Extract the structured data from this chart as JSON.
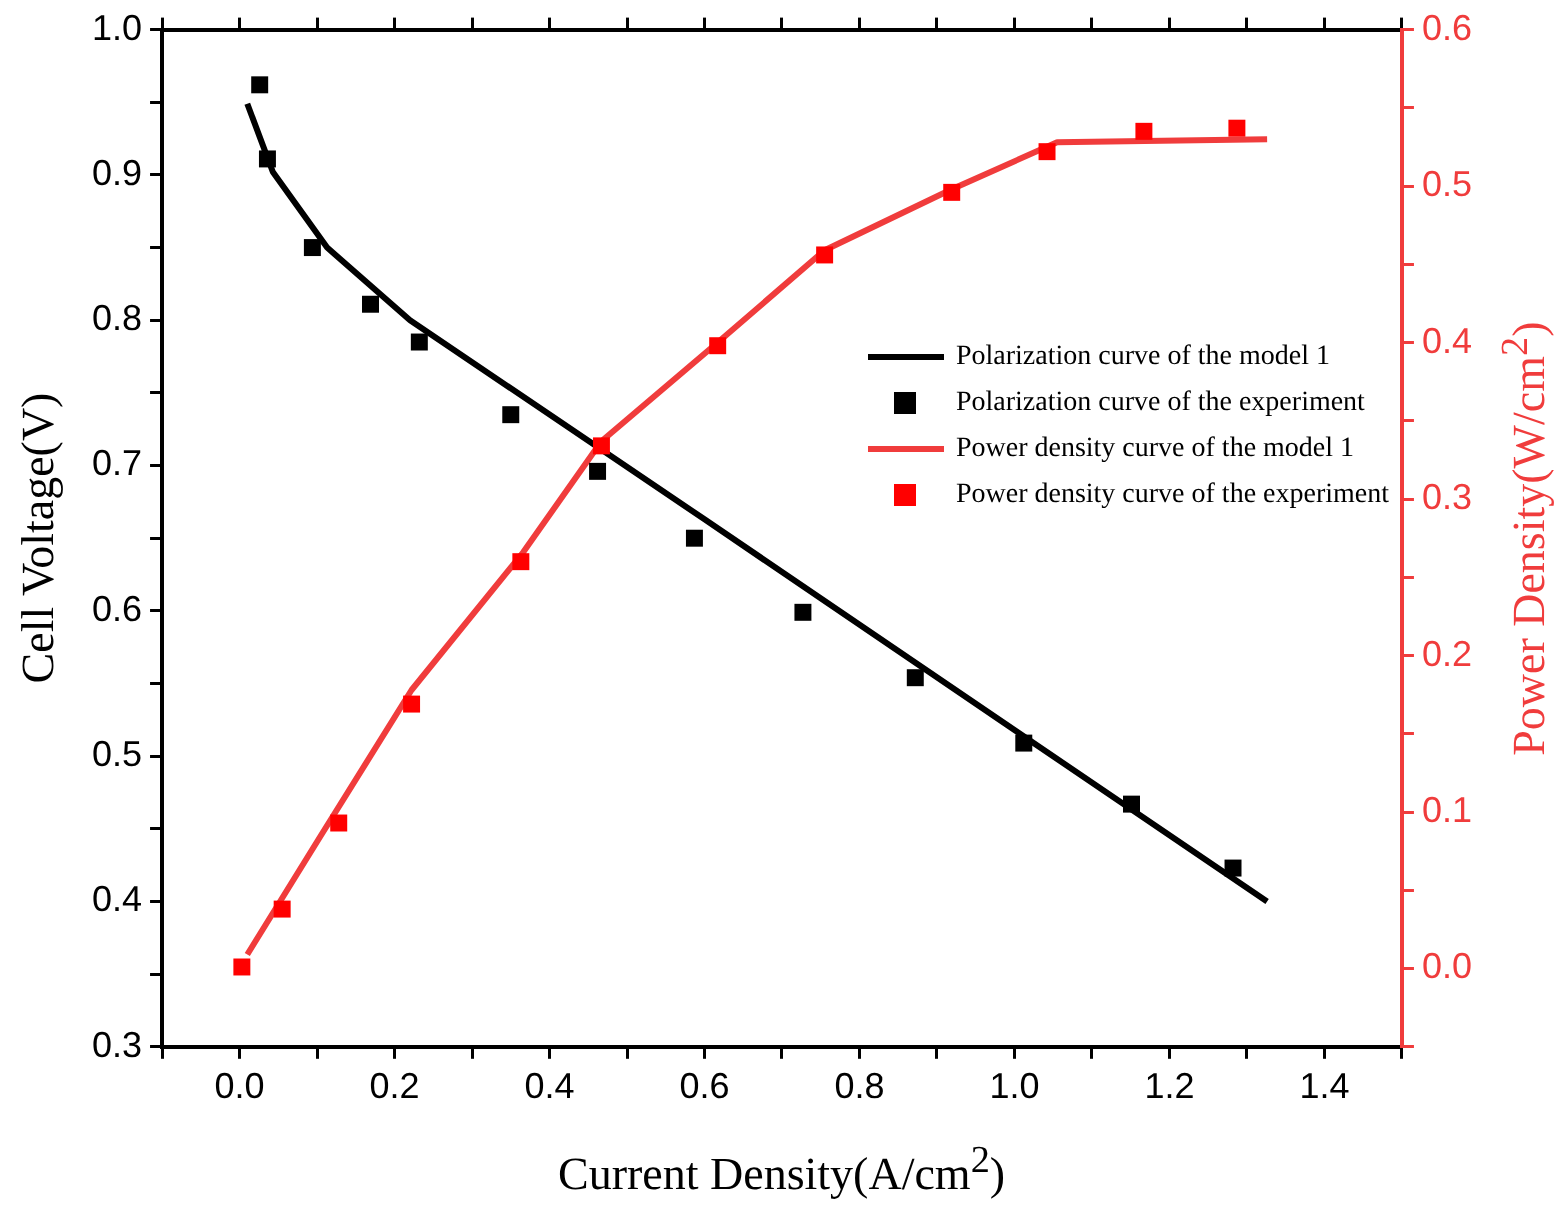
{
  "chart_data": {
    "type": "line",
    "xlabel": "Current Density(A/cm$^{2}$)",
    "ylabel": "Cell Voltage(V)",
    "y2label": "Power Density(W/cm$^{2}$)",
    "xlim": [
      -0.1,
      1.5
    ],
    "xticks": [
      {
        "value": -0.1,
        "label": null
      },
      {
        "value": 0,
        "label": "0.0"
      },
      {
        "value": 0.1,
        "label": null
      },
      0.2,
      {
        "value": 0.3,
        "label": null
      },
      0.4,
      {
        "value": 0.5,
        "label": null
      },
      0.6,
      {
        "value": 0.7,
        "label": null
      },
      0.8,
      {
        "value": 0.9,
        "label": null
      },
      {
        "value": 1,
        "label": "1.0"
      },
      {
        "value": 1.1,
        "label": null
      },
      1.2,
      {
        "value": 1.3,
        "label": null
      },
      1.4,
      {
        "value": 1.5,
        "label": null
      }
    ],
    "ylim": [
      0.3,
      1.0
    ],
    "yticks": [
      0.3,
      {
        "value": 0.35,
        "label": null
      },
      0.4,
      {
        "value": 0.45,
        "label": null
      },
      0.5,
      {
        "value": 0.55,
        "label": null
      },
      0.6,
      {
        "value": 0.65,
        "label": null
      },
      0.7,
      {
        "value": 0.75,
        "label": null
      },
      0.8,
      {
        "value": 0.85,
        "label": null
      },
      0.9,
      {
        "value": 0.95,
        "label": null
      },
      {
        "value": 1,
        "label": "1.0"
      }
    ],
    "y2lim": [
      -0.05,
      0.6
    ],
    "y2ticks": [
      {
        "value": -0.05,
        "label": null
      },
      {
        "value": 0,
        "label": "0.0"
      },
      {
        "value": 0.05,
        "label": null
      },
      0.1,
      {
        "value": 0.15,
        "label": null
      },
      0.2,
      {
        "value": 0.25,
        "label": null
      },
      0.3,
      {
        "value": 0.35,
        "label": null
      },
      0.4,
      {
        "value": 0.45,
        "label": null
      },
      0.5,
      {
        "value": 0.55,
        "label": null
      },
      0.6
    ],
    "grid": false,
    "legend": "right",
    "line_style": "solid",
    "series": [
      {
        "name": "Polarization curve of the model 1",
        "marker": "none",
        "color": "#000000",
        "x": [
          0.01,
          0.043,
          0.113,
          0.22,
          0.6,
          1.0,
          1.326
        ],
        "values": [
          0.949,
          0.902,
          0.85,
          0.8,
          0.663,
          0.518,
          0.4
        ]
      },
      {
        "name": "Polarization curve of the experiment",
        "type": "scatter",
        "marker": "square",
        "color": "#000000",
        "x": [
          0.026,
          0.036,
          0.094,
          0.169,
          0.232,
          0.35,
          0.462,
          0.587,
          0.727,
          0.872,
          1.012,
          1.151,
          1.282
        ],
        "values": [
          0.962,
          0.911,
          0.85,
          0.811,
          0.785,
          0.735,
          0.696,
          0.65,
          0.599,
          0.554,
          0.509,
          0.467,
          0.423
        ]
      },
      {
        "name": "Power density curve of the model 1",
        "marker": "none",
        "axis": "y2",
        "color": "#f03c3c",
        "x": [
          0.01,
          0.105,
          0.222,
          0.366,
          0.467,
          0.617,
          0.755,
          0.919,
          1.055,
          1.326
        ],
        "values": [
          0.009,
          0.085,
          0.178,
          0.266,
          0.337,
          0.4,
          0.459,
          0.498,
          0.528,
          0.53
        ]
      },
      {
        "name": "Power density curve of the experiment",
        "type": "scatter",
        "marker": "square",
        "axis": "y2",
        "color": "#ff0000",
        "x": [
          0.003,
          0.055,
          0.128,
          0.222,
          0.363,
          0.467,
          0.617,
          0.755,
          0.919,
          1.042,
          1.167,
          1.287
        ],
        "values": [
          0.001,
          0.038,
          0.093,
          0.169,
          0.26,
          0.334,
          0.398,
          0.456,
          0.496,
          0.522,
          0.535,
          0.537
        ]
      }
    ]
  }
}
